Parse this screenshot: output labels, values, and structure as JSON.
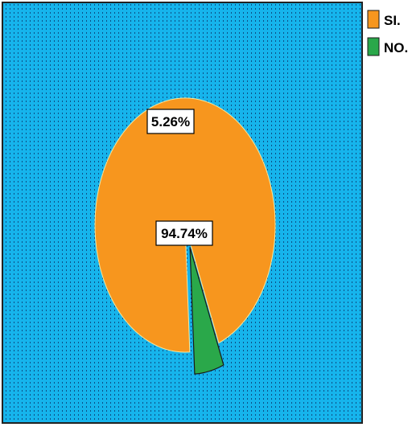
{
  "chart_data": {
    "type": "pie",
    "title": "",
    "categories": [
      "SI.",
      "NO."
    ],
    "values": [
      94.74,
      5.26
    ],
    "data_labels": [
      "94.74%",
      "5.26%"
    ],
    "colors": [
      "#f7961e",
      "#2aa84a"
    ],
    "exploded": [
      false,
      true
    ],
    "plot_background": "#16b4ec",
    "legend": {
      "placement": "top-right",
      "items": [
        {
          "label": "SI.",
          "color": "#f7961e"
        },
        {
          "label": "NO.",
          "color": "#2aa84a"
        }
      ]
    }
  }
}
